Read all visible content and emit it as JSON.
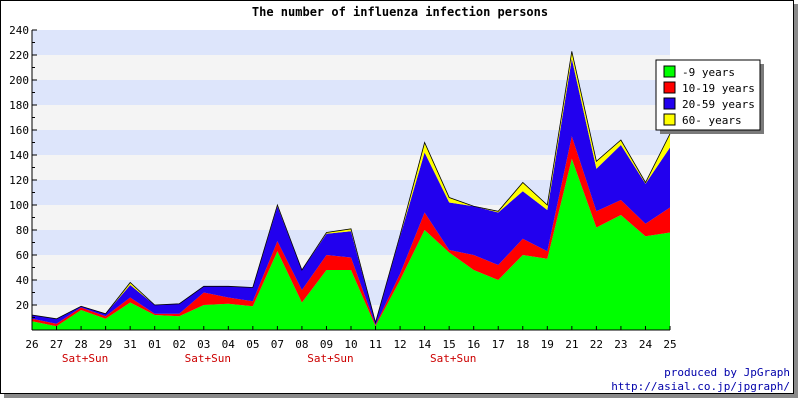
{
  "chart_data": {
    "type": "area",
    "stacked": true,
    "title": "The number of influenza infection persons",
    "xlabel": "",
    "ylabel": "",
    "categories": [
      "26",
      "27",
      "28",
      "29",
      "31",
      "01",
      "02",
      "03",
      "04",
      "05",
      "07",
      "08",
      "09",
      "10",
      "11",
      "12",
      "14",
      "15",
      "16",
      "17",
      "18",
      "19",
      "21",
      "22",
      "23",
      "24",
      "25"
    ],
    "weekend_labels": [
      {
        "category_index": 2,
        "text": "Sat+Sun"
      },
      {
        "category_index": 7,
        "text": "Sat+Sun"
      },
      {
        "category_index": 12,
        "text": "Sat+Sun"
      },
      {
        "category_index": 17,
        "text": "Sat+Sun"
      }
    ],
    "ylim": [
      0,
      240
    ],
    "yticks": [
      20,
      40,
      60,
      80,
      100,
      120,
      140,
      160,
      180,
      200,
      220,
      240
    ],
    "grid": true,
    "legend_position": "top-right",
    "series": [
      {
        "name": "-9 years",
        "color": "#00ff00",
        "values": [
          7,
          3,
          16,
          9,
          22,
          12,
          11,
          20,
          21,
          19,
          63,
          22,
          48,
          48,
          3,
          40,
          80,
          62,
          48,
          40,
          60,
          57,
          137,
          82,
          92,
          75,
          78
        ]
      },
      {
        "name": "10-19 years",
        "color": "#ff0000",
        "values": [
          2,
          2,
          2,
          2,
          4,
          1,
          2,
          10,
          5,
          4,
          8,
          10,
          12,
          10,
          1,
          5,
          14,
          2,
          12,
          12,
          13,
          6,
          18,
          13,
          12,
          10,
          20
        ]
      },
      {
        "name": "20-59 years",
        "color": "#2200ee",
        "values": [
          3,
          4,
          1,
          2,
          10,
          7,
          8,
          5,
          9,
          11,
          28,
          16,
          17,
          21,
          2,
          30,
          48,
          38,
          39,
          42,
          38,
          33,
          62,
          34,
          44,
          32,
          48
        ]
      },
      {
        "name": "60- years",
        "color": "#ffff00",
        "values": [
          0,
          0,
          0,
          0,
          2,
          0,
          0,
          0,
          0,
          0,
          1,
          0,
          1,
          2,
          0,
          1,
          8,
          4,
          0,
          1,
          7,
          4,
          6,
          6,
          4,
          1,
          11
        ]
      }
    ]
  },
  "credits": {
    "line1": "produced by JpGraph",
    "line2": "http://asial.co.jp/jpgraph/"
  }
}
